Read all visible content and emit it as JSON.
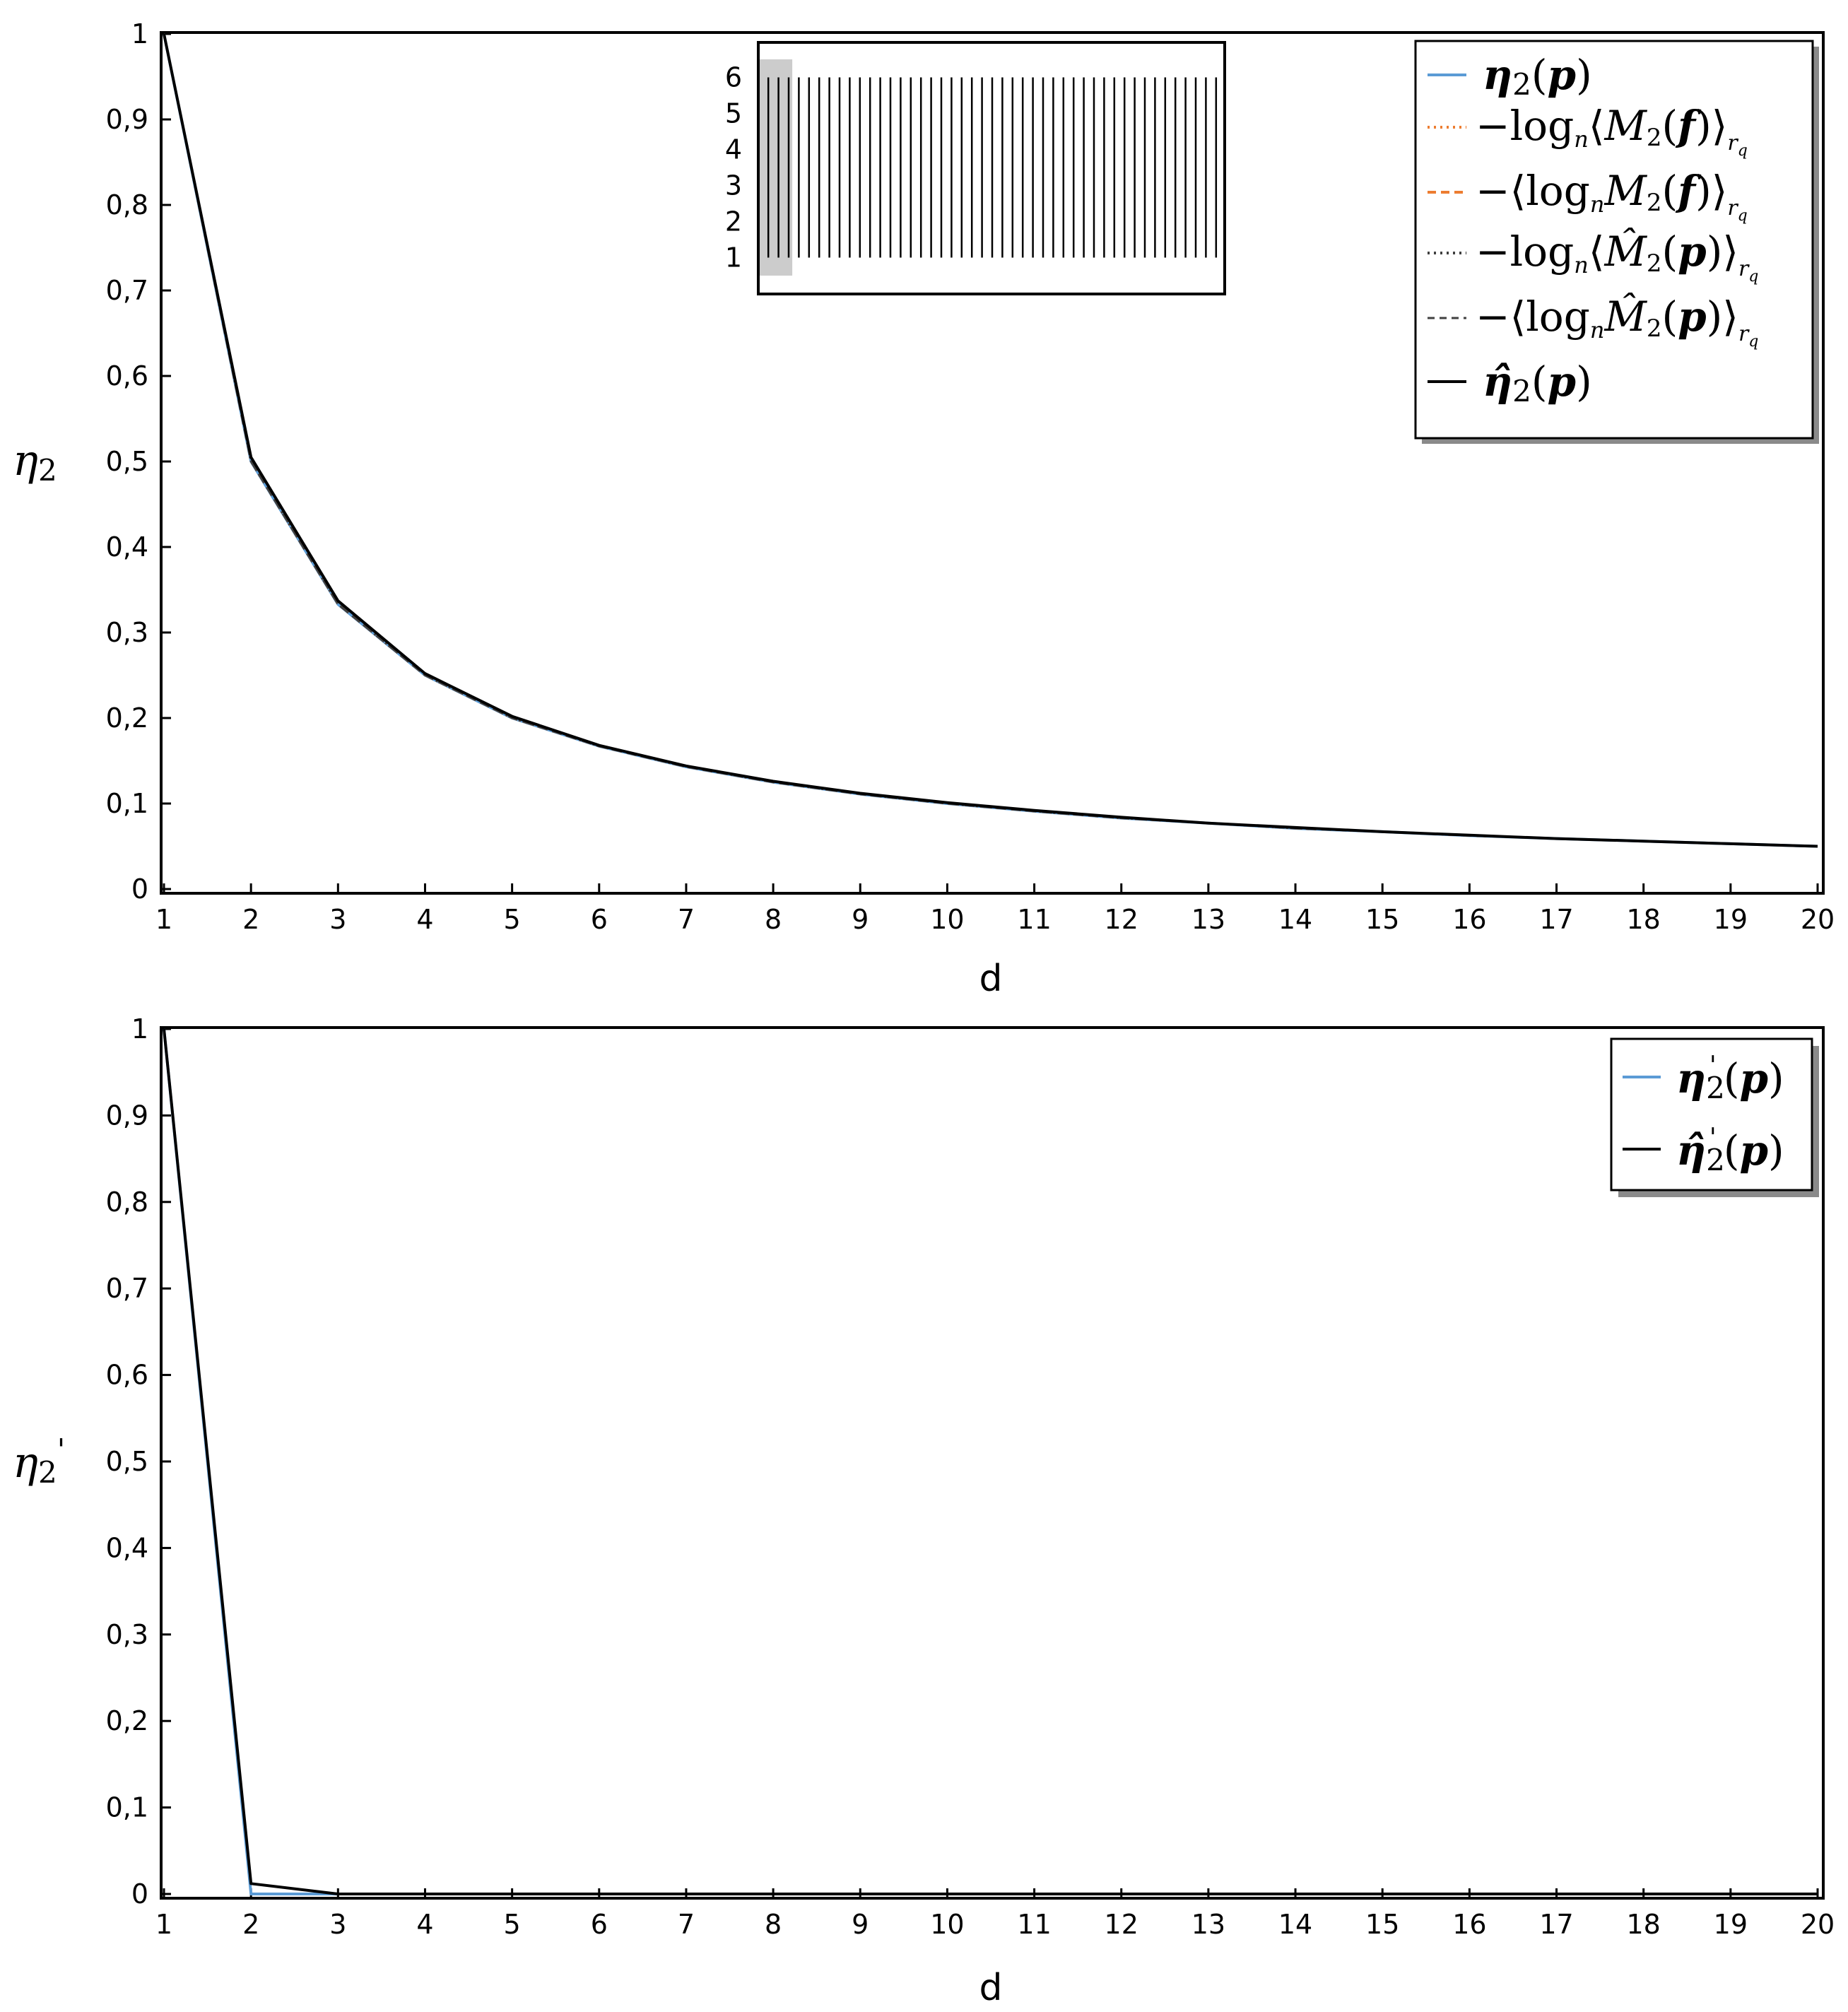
{
  "chart_data": [
    {
      "type": "line",
      "xlabel": "d",
      "ylabel": "η₂",
      "xlim": [
        1,
        20
      ],
      "ylim": [
        0,
        1
      ],
      "x_ticks": [
        "1",
        "2",
        "3",
        "4",
        "5",
        "6",
        "7",
        "8",
        "9",
        "10",
        "11",
        "12",
        "13",
        "14",
        "15",
        "16",
        "17",
        "18",
        "19",
        "20"
      ],
      "y_ticks": [
        "0",
        "0,1",
        "0,2",
        "0,3",
        "0,4",
        "0,5",
        "0,6",
        "0,7",
        "0,8",
        "0,9",
        "1"
      ],
      "x": [
        1,
        2,
        3,
        4,
        5,
        6,
        7,
        8,
        9,
        10,
        11,
        12,
        13,
        14,
        15,
        16,
        17,
        18,
        19,
        20
      ],
      "legend_position": "top-right",
      "series": [
        {
          "name": "η₂(p)",
          "color": "#5b9bd5",
          "style": "solid",
          "values": [
            1,
            0.5,
            0.333,
            0.25,
            0.2,
            0.167,
            0.143,
            0.125,
            0.111,
            0.1,
            0.091,
            0.083,
            0.077,
            0.071,
            0.067,
            0.0625,
            0.059,
            0.056,
            0.053,
            0.05
          ]
        },
        {
          "name": "−logₙ⟨M₂(f)⟩_{r_q}",
          "color": "#ed7d31",
          "style": "dotted",
          "values": [
            1,
            0.5,
            0.333,
            0.25,
            0.2,
            0.167,
            0.143,
            0.125,
            0.111,
            0.1,
            0.091,
            0.083,
            0.077,
            0.071,
            0.067,
            0.0625,
            0.059,
            0.056,
            0.053,
            0.05
          ]
        },
        {
          "name": "−⟨logₙM₂(f)⟩_{r_q}",
          "color": "#ed7d31",
          "style": "dashed",
          "values": [
            1,
            0.5,
            0.333,
            0.25,
            0.2,
            0.167,
            0.143,
            0.125,
            0.111,
            0.1,
            0.091,
            0.083,
            0.077,
            0.071,
            0.067,
            0.0625,
            0.059,
            0.056,
            0.053,
            0.05
          ]
        },
        {
          "name": "−logₙ⟨M̂₂(p)⟩_{r_q}",
          "color": "#404040",
          "style": "dotted",
          "values": [
            1,
            0.5,
            0.333,
            0.25,
            0.2,
            0.167,
            0.143,
            0.125,
            0.111,
            0.1,
            0.091,
            0.083,
            0.077,
            0.071,
            0.067,
            0.0625,
            0.059,
            0.056,
            0.053,
            0.05
          ]
        },
        {
          "name": "−⟨logₙM̂₂(p)⟩_{r_q}",
          "color": "#404040",
          "style": "dashed",
          "values": [
            1,
            0.5,
            0.333,
            0.25,
            0.2,
            0.167,
            0.143,
            0.125,
            0.111,
            0.1,
            0.091,
            0.083,
            0.077,
            0.071,
            0.067,
            0.0625,
            0.059,
            0.056,
            0.053,
            0.05
          ]
        },
        {
          "name": "η̂₂(p)",
          "color": "#000000",
          "style": "solid",
          "values": [
            1,
            0.505,
            0.337,
            0.252,
            0.202,
            0.168,
            0.144,
            0.126,
            0.112,
            0.101,
            0.092,
            0.084,
            0.077,
            0.072,
            0.067,
            0.063,
            0.059,
            0.056,
            0.053,
            0.05
          ]
        }
      ],
      "inset": {
        "y_ticks": [
          "1",
          "2",
          "3",
          "4",
          "5",
          "6"
        ],
        "ylim": [
          0.5,
          6.5
        ],
        "stripe_count": 45,
        "shaded_fraction": 0.07
      }
    },
    {
      "type": "line",
      "xlabel": "d",
      "ylabel": "η₂'",
      "xlim": [
        1,
        20
      ],
      "ylim": [
        0,
        1
      ],
      "x_ticks": [
        "1",
        "2",
        "3",
        "4",
        "5",
        "6",
        "7",
        "8",
        "9",
        "10",
        "11",
        "12",
        "13",
        "14",
        "15",
        "16",
        "17",
        "18",
        "19",
        "20"
      ],
      "y_ticks": [
        "0",
        "0,1",
        "0,2",
        "0,3",
        "0,4",
        "0,5",
        "0,6",
        "0,7",
        "0,8",
        "0,9",
        "1"
      ],
      "x": [
        1,
        2,
        3,
        4,
        5,
        6,
        7,
        8,
        9,
        10,
        11,
        12,
        13,
        14,
        15,
        16,
        17,
        18,
        19,
        20
      ],
      "legend_position": "top-right",
      "series": [
        {
          "name": "η₂'(p)",
          "color": "#5b9bd5",
          "style": "solid",
          "values": [
            1,
            0,
            0,
            0,
            0,
            0,
            0,
            0,
            0,
            0,
            0,
            0,
            0,
            0,
            0,
            0,
            0,
            0,
            0,
            0
          ]
        },
        {
          "name": "η̂₂'(p)",
          "color": "#000000",
          "style": "solid",
          "values": [
            1,
            0.012,
            0,
            0,
            0,
            0,
            0,
            0,
            0,
            0,
            0,
            0,
            0,
            0,
            0,
            0,
            0,
            0,
            0,
            0
          ]
        }
      ]
    }
  ]
}
